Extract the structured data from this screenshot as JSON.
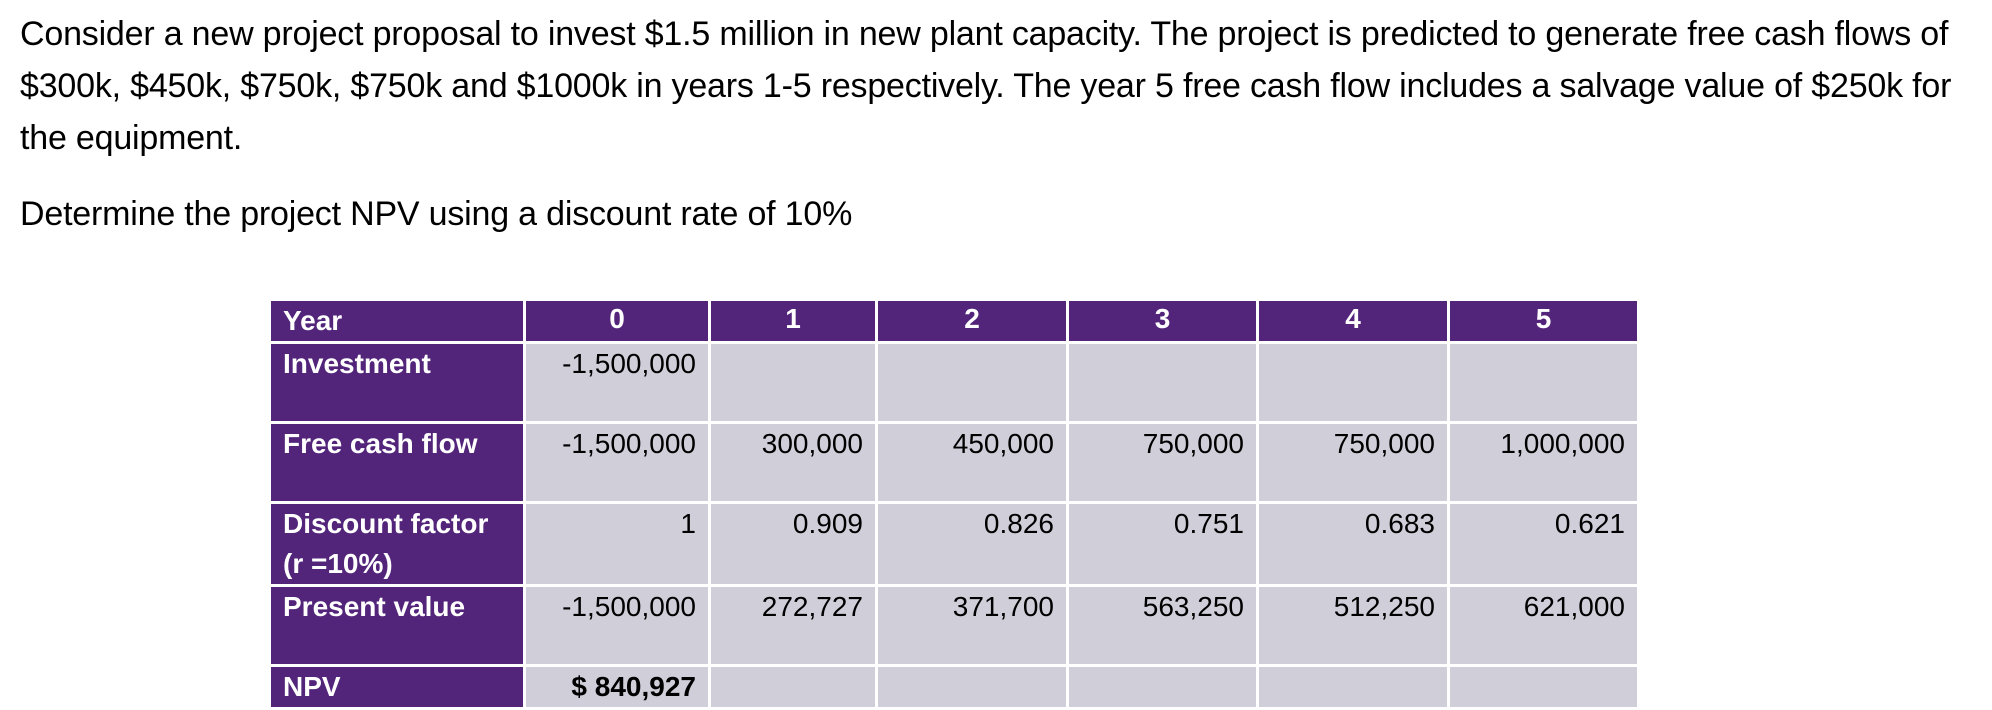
{
  "problem_text": "Consider a new project proposal to invest $1.5 million in new plant capacity. The project is predicted to generate free cash flows of $300k, $450k, $750k, $750k and $1000k in years 1-5 respectively.  The year 5 free cash flow includes a salvage value of $250k for the equipment.",
  "question_text": "Determine the project NPV using a discount rate of 10%",
  "table": {
    "header": {
      "label": "Year",
      "years": [
        "0",
        "1",
        "2",
        "3",
        "4",
        "5"
      ]
    },
    "rows": [
      {
        "label_line1": "Investment",
        "label_line2": "",
        "values": [
          "-1,500,000",
          "",
          "",
          "",
          "",
          ""
        ]
      },
      {
        "label_line1": "Free cash flow",
        "label_line2": "",
        "values": [
          "-1,500,000",
          "300,000",
          "450,000",
          "750,000",
          "750,000",
          "1,000,000"
        ]
      },
      {
        "label_line1": "Discount factor",
        "label_line2": "(r =10%)",
        "values": [
          "1",
          "0.909",
          "0.826",
          "0.751",
          "0.683",
          "0.621"
        ]
      },
      {
        "label_line1": "Present value",
        "label_line2": "",
        "values": [
          "-1,500,000",
          "272,727",
          "371,700",
          "563,250",
          "512,250",
          "621,000"
        ]
      }
    ],
    "npv": {
      "label": "NPV",
      "value": "$ 840,927"
    }
  },
  "colors": {
    "header_fill": "#52247a",
    "cell_fill": "#d0ced9",
    "grid_lines": "#ffffff"
  }
}
